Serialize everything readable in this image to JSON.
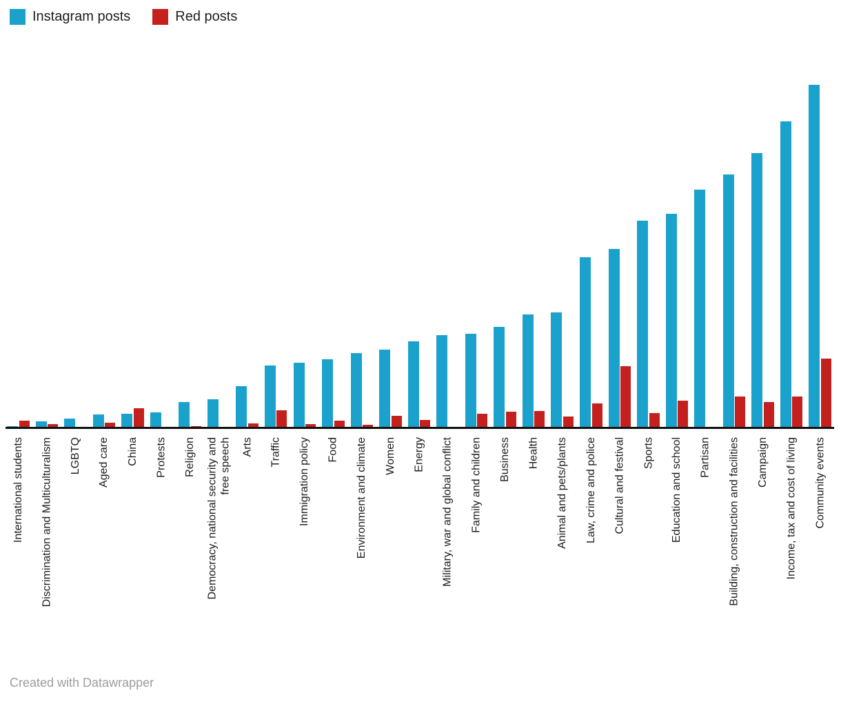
{
  "legend": {
    "items": [
      {
        "label": "Instagram posts",
        "color": "#1AA2CD"
      },
      {
        "label": "Red posts",
        "color": "#C4211E"
      }
    ]
  },
  "footer": {
    "attribution": "Created with Datawrapper"
  },
  "chart_data": {
    "type": "bar",
    "title": "",
    "xlabel": "",
    "ylabel": "",
    "y_axis": "hidden",
    "grid": false,
    "legend_position": "top-left",
    "value_units": "relative (no numeric axis shown in chart)",
    "ylim": [
      0,
      510
    ],
    "categories": [
      "International students",
      "Discrimination and Multiculturalism",
      "LGBTQ",
      "Aged care",
      "China",
      "Protests",
      "Religion",
      "Democracy, national security and\nfree speech",
      "Arts",
      "Traffic",
      "Immigration policy",
      "Food",
      "Environment and climate",
      "Women",
      "Energy",
      "Military, war and global conflict",
      "Family and children",
      "Business",
      "Health",
      "Animal and pets/plants",
      "Law, crime and police",
      "Cultural and festival",
      "Sports",
      "Education and school",
      "Partisan",
      "Building, construction and facilities",
      "Campaign",
      "Income, tax and cost of living",
      "Community events"
    ],
    "series": [
      {
        "name": "Instagram posts",
        "color": "#1AA2CD",
        "values": [
          2,
          9,
          13,
          19,
          20,
          22,
          37,
          41,
          60,
          90,
          94,
          99,
          108,
          113,
          125,
          134,
          136,
          146,
          164,
          167,
          247,
          259,
          300,
          310,
          345,
          367,
          398,
          444,
          497
        ]
      },
      {
        "name": "Red posts",
        "color": "#C4211E",
        "values": [
          10,
          5,
          0,
          7,
          28,
          0,
          2,
          0,
          6,
          25,
          5,
          10,
          4,
          17,
          11,
          0,
          20,
          23,
          24,
          16,
          35,
          89,
          21,
          39,
          0,
          45,
          37,
          45,
          100
        ]
      }
    ]
  }
}
